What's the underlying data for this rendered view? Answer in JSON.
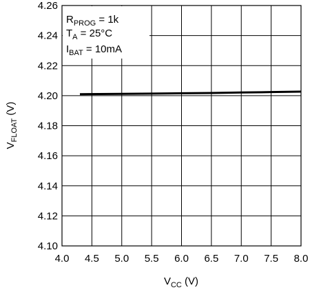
{
  "chart_data": {
    "type": "line",
    "x_axis": {
      "label_main": "V",
      "label_sub": "CC",
      "label_unit": " (V)",
      "range": [
        4.0,
        8.0
      ],
      "ticks": [
        "4.0",
        "4.5",
        "5.0",
        "5.5",
        "6.0",
        "6.5",
        "7.0",
        "7.5",
        "8.0"
      ]
    },
    "y_axis": {
      "label_main": "V",
      "label_sub": "FLOAT",
      "label_unit": " (V)",
      "range": [
        4.1,
        4.26
      ],
      "ticks": [
        "4.10",
        "4.12",
        "4.14",
        "4.16",
        "4.18",
        "4.20",
        "4.22",
        "4.24",
        "4.26"
      ]
    },
    "grid": true,
    "annotations": [
      {
        "main": "R",
        "sub": "PROG",
        "rest": " = 1k"
      },
      {
        "main": "T",
        "sub": "A",
        "rest": " = 25°C"
      },
      {
        "main": "I",
        "sub": "BAT",
        "rest": " = 10mA"
      }
    ],
    "series": [
      {
        "x": [
          4.3,
          5.0,
          5.5,
          6.0,
          6.5,
          7.0,
          7.5,
          8.0
        ],
        "y": [
          4.201,
          4.2012,
          4.2014,
          4.2016,
          4.2018,
          4.2021,
          4.2024,
          4.2027
        ]
      }
    ],
    "colors": {
      "line": "#000000",
      "grid": "#000000",
      "background": "#ffffff"
    }
  }
}
